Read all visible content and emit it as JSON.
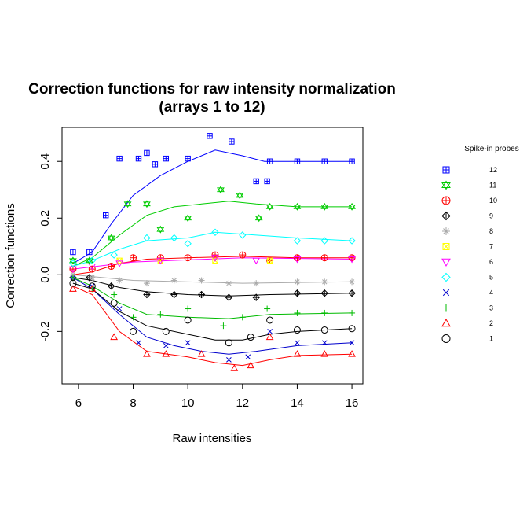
{
  "chart_data": {
    "type": "scatter",
    "title_line1": "Correction functions for raw intensity normalization",
    "title_line2": "(arrays 1 to 12)",
    "xlabel": "Raw intensities",
    "ylabel": "Correction functions",
    "xlim": [
      5.4,
      16.4
    ],
    "ylim": [
      -0.385,
      0.52
    ],
    "x_ticks": [
      6,
      8,
      10,
      12,
      14,
      16
    ],
    "y_ticks": [
      -0.2,
      0.0,
      0.2,
      0.4
    ],
    "y_tick_labels": [
      "-0.2",
      "0.0",
      "0.2",
      "0.4"
    ],
    "legend_title": "Spike-in probes",
    "legend_placement": "right",
    "series": [
      {
        "name": "12",
        "color": "#0000FF",
        "symbol": "square-plus",
        "points": [
          [
            5.8,
            0.08
          ],
          [
            6.4,
            0.08
          ],
          [
            7.0,
            0.21
          ],
          [
            7.5,
            0.41
          ],
          [
            8.2,
            0.41
          ],
          [
            8.5,
            0.43
          ],
          [
            8.8,
            0.39
          ],
          [
            9.2,
            0.41
          ],
          [
            10.0,
            0.41
          ],
          [
            10.8,
            0.49
          ],
          [
            11.6,
            0.47
          ],
          [
            12.5,
            0.33
          ],
          [
            12.9,
            0.33
          ],
          [
            13.0,
            0.4
          ],
          [
            14.0,
            0.4
          ],
          [
            15.0,
            0.4
          ],
          [
            16.0,
            0.4
          ]
        ],
        "curve": [
          [
            5.8,
            0.04
          ],
          [
            6.5,
            0.08
          ],
          [
            7.2,
            0.18
          ],
          [
            8.0,
            0.28
          ],
          [
            9.0,
            0.35
          ],
          [
            10.0,
            0.4
          ],
          [
            11.0,
            0.44
          ],
          [
            12.0,
            0.42
          ],
          [
            12.8,
            0.4
          ],
          [
            14.0,
            0.4
          ],
          [
            15.0,
            0.4
          ],
          [
            16.0,
            0.4
          ]
        ]
      },
      {
        "name": "11",
        "color": "#00CC00",
        "symbol": "star-of-david",
        "points": [
          [
            5.8,
            0.05
          ],
          [
            6.4,
            0.05
          ],
          [
            7.2,
            0.13
          ],
          [
            7.8,
            0.25
          ],
          [
            8.5,
            0.25
          ],
          [
            9.0,
            0.16
          ],
          [
            10.0,
            0.2
          ],
          [
            11.2,
            0.3
          ],
          [
            11.9,
            0.28
          ],
          [
            12.6,
            0.2
          ],
          [
            13.0,
            0.24
          ],
          [
            14.0,
            0.24
          ],
          [
            15.0,
            0.24
          ],
          [
            16.0,
            0.24
          ]
        ],
        "curve": [
          [
            5.8,
            0.03
          ],
          [
            6.5,
            0.06
          ],
          [
            7.5,
            0.14
          ],
          [
            8.5,
            0.21
          ],
          [
            9.5,
            0.24
          ],
          [
            10.5,
            0.25
          ],
          [
            11.5,
            0.26
          ],
          [
            12.5,
            0.25
          ],
          [
            14.0,
            0.24
          ],
          [
            16.0,
            0.24
          ]
        ]
      },
      {
        "name": "10",
        "color": "#FF0000",
        "symbol": "circle-plus",
        "points": [
          [
            5.8,
            0.02
          ],
          [
            6.5,
            0.02
          ],
          [
            7.2,
            0.03
          ],
          [
            8.0,
            0.06
          ],
          [
            9.0,
            0.06
          ],
          [
            10.0,
            0.06
          ],
          [
            11.0,
            0.07
          ],
          [
            12.0,
            0.07
          ],
          [
            13.0,
            0.05
          ],
          [
            14.0,
            0.06
          ],
          [
            15.0,
            0.06
          ],
          [
            16.0,
            0.06
          ]
        ],
        "curve": [
          [
            5.8,
            0.0
          ],
          [
            6.5,
            0.01
          ],
          [
            7.5,
            0.04
          ],
          [
            8.5,
            0.055
          ],
          [
            10.0,
            0.06
          ],
          [
            12.0,
            0.065
          ],
          [
            14.0,
            0.06
          ],
          [
            16.0,
            0.06
          ]
        ]
      },
      {
        "name": "9",
        "color": "#000000",
        "symbol": "diamond-plus",
        "points": [
          [
            5.8,
            -0.01
          ],
          [
            6.4,
            -0.01
          ],
          [
            7.2,
            -0.04
          ],
          [
            8.5,
            -0.07
          ],
          [
            9.5,
            -0.07
          ],
          [
            10.5,
            -0.07
          ],
          [
            11.5,
            -0.08
          ],
          [
            12.5,
            -0.08
          ],
          [
            14.0,
            -0.065
          ],
          [
            15.0,
            -0.065
          ],
          [
            16.0,
            -0.065
          ]
        ],
        "curve": [
          [
            5.8,
            -0.01
          ],
          [
            6.5,
            -0.02
          ],
          [
            7.5,
            -0.045
          ],
          [
            8.5,
            -0.06
          ],
          [
            10.0,
            -0.07
          ],
          [
            11.5,
            -0.075
          ],
          [
            13.0,
            -0.07
          ],
          [
            16.0,
            -0.065
          ]
        ]
      },
      {
        "name": "8",
        "color": "#AAAAAA",
        "symbol": "asterisk",
        "points": [
          [
            5.8,
            0.0
          ],
          [
            6.5,
            -0.01
          ],
          [
            7.5,
            -0.02
          ],
          [
            8.5,
            -0.03
          ],
          [
            9.5,
            -0.02
          ],
          [
            10.5,
            -0.02
          ],
          [
            11.5,
            -0.03
          ],
          [
            12.5,
            -0.03
          ],
          [
            14.0,
            -0.025
          ],
          [
            15.0,
            -0.025
          ],
          [
            16.0,
            -0.025
          ]
        ],
        "curve": [
          [
            5.8,
            0.0
          ],
          [
            8.0,
            -0.02
          ],
          [
            12.0,
            -0.03
          ],
          [
            16.0,
            -0.025
          ]
        ]
      },
      {
        "name": "7",
        "color": "#FFFF00",
        "symbol": "square-x",
        "points": [
          [
            7.5,
            0.05
          ],
          [
            9.0,
            0.05
          ],
          [
            11.0,
            0.05
          ],
          [
            13.0,
            0.05
          ]
        ],
        "curve": []
      },
      {
        "name": "6",
        "color": "#FF00FF",
        "symbol": "triangle-down",
        "points": [
          [
            5.8,
            0.02
          ],
          [
            6.5,
            0.03
          ],
          [
            7.5,
            0.04
          ],
          [
            9.0,
            0.05
          ],
          [
            11.0,
            0.06
          ],
          [
            12.5,
            0.05
          ],
          [
            14.0,
            0.055
          ],
          [
            16.0,
            0.055
          ]
        ],
        "curve": [
          [
            5.8,
            0.02
          ],
          [
            8.0,
            0.045
          ],
          [
            12.0,
            0.06
          ],
          [
            16.0,
            0.055
          ]
        ]
      },
      {
        "name": "5",
        "color": "#00FFFF",
        "symbol": "diamond",
        "points": [
          [
            5.8,
            0.04
          ],
          [
            6.5,
            0.05
          ],
          [
            7.3,
            0.07
          ],
          [
            8.5,
            0.13
          ],
          [
            9.5,
            0.13
          ],
          [
            10.0,
            0.11
          ],
          [
            11.0,
            0.15
          ],
          [
            12.0,
            0.14
          ],
          [
            14.0,
            0.12
          ],
          [
            15.0,
            0.12
          ],
          [
            16.0,
            0.12
          ]
        ],
        "curve": [
          [
            5.8,
            0.03
          ],
          [
            6.5,
            0.05
          ],
          [
            7.5,
            0.09
          ],
          [
            8.5,
            0.12
          ],
          [
            10.0,
            0.13
          ],
          [
            11.0,
            0.15
          ],
          [
            12.5,
            0.14
          ],
          [
            14.0,
            0.13
          ],
          [
            16.0,
            0.12
          ]
        ]
      },
      {
        "name": "4",
        "color": "#0000CC",
        "symbol": "x",
        "points": [
          [
            5.8,
            -0.01
          ],
          [
            6.5,
            -0.04
          ],
          [
            7.5,
            -0.12
          ],
          [
            8.2,
            -0.24
          ],
          [
            9.2,
            -0.25
          ],
          [
            10.0,
            -0.24
          ],
          [
            11.5,
            -0.3
          ],
          [
            12.2,
            -0.29
          ],
          [
            13.0,
            -0.2
          ],
          [
            14.0,
            -0.24
          ],
          [
            15.0,
            -0.24
          ],
          [
            16.0,
            -0.24
          ]
        ],
        "curve": [
          [
            5.8,
            -0.01
          ],
          [
            6.5,
            -0.05
          ],
          [
            7.5,
            -0.14
          ],
          [
            8.5,
            -0.22
          ],
          [
            9.5,
            -0.25
          ],
          [
            10.5,
            -0.27
          ],
          [
            11.5,
            -0.28
          ],
          [
            12.5,
            -0.27
          ],
          [
            14.0,
            -0.25
          ],
          [
            16.0,
            -0.24
          ]
        ]
      },
      {
        "name": "3",
        "color": "#00BB00",
        "symbol": "plus",
        "points": [
          [
            5.8,
            -0.01
          ],
          [
            6.5,
            -0.05
          ],
          [
            7.3,
            -0.07
          ],
          [
            8.0,
            -0.15
          ],
          [
            9.0,
            -0.14
          ],
          [
            10.0,
            -0.12
          ],
          [
            11.3,
            -0.18
          ],
          [
            12.0,
            -0.15
          ],
          [
            12.9,
            -0.12
          ],
          [
            14.0,
            -0.135
          ],
          [
            15.0,
            -0.135
          ],
          [
            16.0,
            -0.135
          ]
        ],
        "curve": [
          [
            5.8,
            -0.01
          ],
          [
            6.5,
            -0.04
          ],
          [
            7.5,
            -0.1
          ],
          [
            8.5,
            -0.14
          ],
          [
            10.0,
            -0.15
          ],
          [
            11.5,
            -0.155
          ],
          [
            13.0,
            -0.14
          ],
          [
            16.0,
            -0.135
          ]
        ]
      },
      {
        "name": "2",
        "color": "#FF0000",
        "symbol": "triangle",
        "points": [
          [
            5.8,
            -0.05
          ],
          [
            6.5,
            -0.05
          ],
          [
            7.3,
            -0.22
          ],
          [
            8.5,
            -0.28
          ],
          [
            9.2,
            -0.28
          ],
          [
            10.5,
            -0.28
          ],
          [
            11.7,
            -0.33
          ],
          [
            12.3,
            -0.32
          ],
          [
            13.0,
            -0.22
          ],
          [
            14.0,
            -0.28
          ],
          [
            15.0,
            -0.28
          ],
          [
            16.0,
            -0.28
          ]
        ],
        "curve": [
          [
            5.8,
            -0.04
          ],
          [
            6.5,
            -0.07
          ],
          [
            7.5,
            -0.2
          ],
          [
            8.5,
            -0.27
          ],
          [
            10.0,
            -0.29
          ],
          [
            11.0,
            -0.31
          ],
          [
            12.0,
            -0.32
          ],
          [
            13.0,
            -0.3
          ],
          [
            14.0,
            -0.285
          ],
          [
            16.0,
            -0.28
          ]
        ]
      },
      {
        "name": "1",
        "color": "#000000",
        "symbol": "circle",
        "points": [
          [
            5.8,
            -0.03
          ],
          [
            6.5,
            -0.04
          ],
          [
            7.3,
            -0.1
          ],
          [
            8.0,
            -0.2
          ],
          [
            9.2,
            -0.2
          ],
          [
            10.0,
            -0.16
          ],
          [
            11.5,
            -0.24
          ],
          [
            12.3,
            -0.22
          ],
          [
            13.0,
            -0.16
          ],
          [
            14.0,
            -0.195
          ],
          [
            15.0,
            -0.195
          ],
          [
            16.0,
            -0.19
          ]
        ],
        "curve": [
          [
            5.8,
            -0.03
          ],
          [
            6.5,
            -0.05
          ],
          [
            7.5,
            -0.13
          ],
          [
            8.5,
            -0.18
          ],
          [
            10.0,
            -0.21
          ],
          [
            11.0,
            -0.23
          ],
          [
            12.0,
            -0.23
          ],
          [
            13.0,
            -0.21
          ],
          [
            14.0,
            -0.2
          ],
          [
            16.0,
            -0.19
          ]
        ]
      }
    ]
  }
}
